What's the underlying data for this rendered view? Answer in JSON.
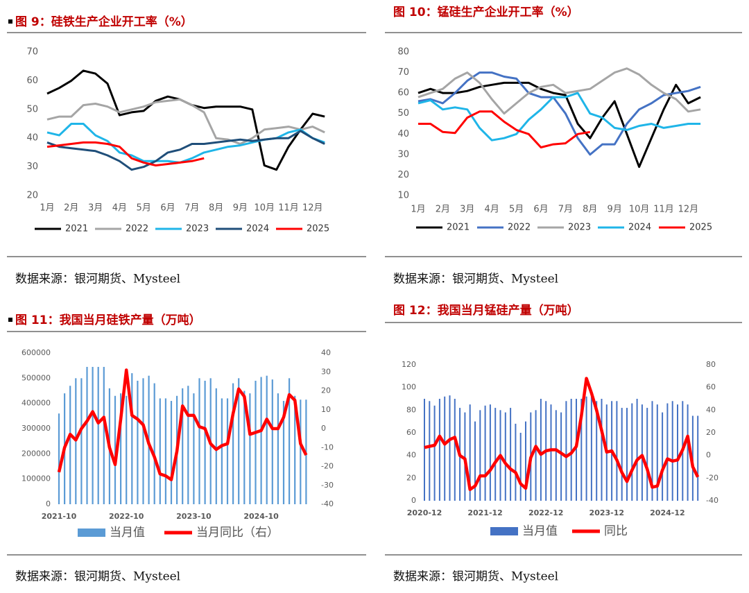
{
  "chart_data": [
    {
      "type": "line",
      "title": "图 9：硅铁生产企业开工率（%）",
      "source": "数据来源：银河期货、Mysteel",
      "categories": [
        "1月",
        null,
        "2月",
        null,
        "3月",
        null,
        "4月",
        null,
        "5月",
        null,
        "6月",
        null,
        "7月",
        null,
        "8月",
        null,
        "9月",
        null,
        "10月",
        null,
        "11月",
        null,
        "12月",
        null
      ],
      "ylim": [
        20,
        70
      ],
      "yticks": [
        20,
        30,
        40,
        50,
        60,
        70
      ],
      "series": [
        {
          "name": "2021",
          "color": "#000000",
          "values": [
            55.5,
            57.5,
            60,
            63.5,
            62.5,
            59,
            48,
            49,
            49.5,
            53,
            54.5,
            53.5,
            51.5,
            50.5,
            51,
            51,
            51,
            50,
            30.5,
            29,
            37,
            43,
            48.5,
            47.5
          ]
        },
        {
          "name": "2022",
          "color": "#a5a5a5",
          "values": [
            46.5,
            47.5,
            47.5,
            51.5,
            52,
            51,
            49,
            50,
            51,
            52.5,
            53,
            53.5,
            51.5,
            49,
            40,
            39.5,
            38,
            40,
            43,
            43.5,
            44,
            43,
            44,
            42
          ]
        },
        {
          "name": "2023",
          "color": "#1fb5e8",
          "values": [
            42,
            41,
            45,
            45,
            41,
            39,
            35,
            34,
            32,
            32,
            32,
            31.5,
            33,
            35,
            36,
            37,
            37.5,
            38.5,
            39.5,
            40,
            42,
            43,
            40,
            38.5
          ]
        },
        {
          "name": "2024",
          "color": "#1f4e79",
          "values": [
            38.5,
            37,
            36.5,
            36,
            35.5,
            34,
            32,
            29,
            30,
            32,
            35,
            36,
            38,
            38,
            38.5,
            39,
            39.5,
            39,
            39.5,
            40,
            40,
            42.5,
            40,
            38
          ]
        },
        {
          "name": "2025",
          "color": "#ff0000",
          "values": [
            37,
            37.5,
            38,
            38.5,
            38.5,
            38,
            37,
            33,
            31.5,
            30.5,
            31,
            31.5,
            32,
            33,
            null,
            null,
            null,
            null,
            null,
            null,
            null,
            null,
            null,
            null
          ]
        }
      ]
    },
    {
      "type": "line",
      "title": "图 10：锰硅生产企业开工率（%）",
      "source": "数据来源：银河期货、Mysteel",
      "categories": [
        "1月",
        null,
        "2月",
        null,
        "3月",
        null,
        "4月",
        null,
        "5月",
        null,
        "6月",
        null,
        "7月",
        null,
        "8月",
        null,
        "9月",
        null,
        "10月",
        null,
        "11月",
        null,
        "12月",
        null
      ],
      "ylim": [
        10,
        80
      ],
      "yticks": [
        10,
        20,
        30,
        40,
        50,
        60,
        70,
        80
      ],
      "series": [
        {
          "name": "2021",
          "color": "#000000",
          "values": [
            60,
            62,
            60,
            60,
            61,
            63,
            64,
            65,
            65,
            65,
            62,
            60,
            59,
            45,
            38,
            48,
            56,
            40,
            24,
            38,
            52,
            64,
            55,
            58
          ]
        },
        {
          "name": "2022",
          "color": "#4472c4",
          "values": [
            56,
            57,
            55,
            60,
            66,
            70,
            70,
            68,
            67,
            60,
            58,
            58,
            50,
            38,
            30,
            35,
            35,
            45,
            52,
            55,
            59,
            60,
            61,
            63
          ]
        },
        {
          "name": "2023",
          "color": "#a5a5a5",
          "values": [
            58,
            60,
            62,
            67,
            70,
            65,
            57,
            50,
            55,
            60,
            63,
            64,
            60,
            61,
            62,
            66,
            70,
            72,
            69,
            64,
            60,
            57,
            51,
            52
          ]
        },
        {
          "name": "2024",
          "color": "#1fb5e8",
          "values": [
            55,
            56.5,
            52,
            53,
            52,
            43,
            37,
            38,
            40,
            47,
            52,
            58,
            58,
            60,
            50,
            48,
            43,
            42,
            44,
            45,
            43,
            44,
            45,
            45
          ]
        },
        {
          "name": "2025",
          "color": "#ff0000",
          "values": [
            45,
            45,
            41,
            40.5,
            48,
            51,
            51,
            46,
            42,
            40,
            33.5,
            35,
            35.5,
            40,
            41,
            null,
            null,
            null,
            null,
            null,
            null,
            null,
            null,
            null
          ]
        }
      ]
    },
    {
      "type": "combo",
      "title": "图 11：我国当月硅铁产量（万吨）",
      "source": "数据来源：银河期货、Mysteel",
      "categories": [
        "2021-10",
        null,
        null,
        null,
        null,
        null,
        null,
        null,
        null,
        null,
        null,
        null,
        "2022-10",
        null,
        null,
        null,
        null,
        null,
        null,
        null,
        null,
        null,
        null,
        null,
        "2023-10",
        null,
        null,
        null,
        null,
        null,
        null,
        null,
        null,
        null,
        null,
        null,
        "2024-10",
        null,
        null,
        null,
        null,
        null,
        null,
        null,
        null
      ],
      "ylim": [
        0,
        600000
      ],
      "yticks": [
        0,
        100000,
        200000,
        300000,
        400000,
        500000,
        600000
      ],
      "y2lim": [
        -40,
        40
      ],
      "y2ticks": [
        -40,
        -30,
        -20,
        -10,
        0,
        10,
        20,
        30,
        40
      ],
      "series": [
        {
          "name": "当月值",
          "color": "#5b9bd5",
          "values": [
            360000,
            440000,
            470000,
            500000,
            500000,
            545000,
            545000,
            545000,
            545000,
            460000,
            430000,
            440000,
            430000,
            520000,
            490000,
            500000,
            510000,
            480000,
            420000,
            420000,
            410000,
            430000,
            460000,
            470000,
            440000,
            500000,
            490000,
            500000,
            460000,
            420000,
            420000,
            480000,
            500000,
            450000,
            440000,
            490000,
            505000,
            510000,
            495000,
            440000,
            410000,
            500000,
            430000,
            415000,
            415000
          ]
        },
        {
          "name": "当月同比（右）",
          "color": "#ff0000",
          "axis": "y2",
          "values": [
            -23,
            -10,
            -3,
            -6,
            0,
            4,
            9,
            3,
            6,
            -10,
            -19,
            5,
            31,
            7,
            5,
            2,
            -8,
            -15,
            -24,
            -25,
            -27,
            -12,
            12,
            7,
            7,
            1,
            0,
            -8,
            -11,
            -9,
            -8,
            8,
            21,
            17,
            -3,
            -2,
            -1,
            5,
            0,
            0,
            6,
            18,
            15,
            -8,
            -14
          ]
        }
      ]
    },
    {
      "type": "combo",
      "title": "图 12：我国当月锰硅产量（万吨）",
      "source": "数据来源：银河期货、Mysteel",
      "categories": [
        "2020-12",
        null,
        null,
        null,
        null,
        null,
        null,
        null,
        null,
        null,
        null,
        null,
        "2021-12",
        null,
        null,
        null,
        null,
        null,
        null,
        null,
        null,
        null,
        null,
        null,
        "2022-12",
        null,
        null,
        null,
        null,
        null,
        null,
        null,
        null,
        null,
        null,
        null,
        "2023-12",
        null,
        null,
        null,
        null,
        null,
        null,
        null,
        null,
        null,
        null,
        null,
        "2024-12",
        null,
        null,
        null,
        null,
        null,
        null
      ],
      "ylim": [
        0,
        120
      ],
      "yticks": [
        0,
        20,
        40,
        60,
        80,
        100,
        120
      ],
      "y2lim": [
        -40,
        80
      ],
      "y2ticks": [
        -40,
        -20,
        0,
        20,
        40,
        60,
        80
      ],
      "series": [
        {
          "name": "当月值",
          "color": "#4472c4",
          "values": [
            90,
            88,
            84,
            90,
            92,
            93,
            90,
            82,
            78,
            85,
            70,
            80,
            84,
            85,
            82,
            80,
            78,
            82,
            68,
            60,
            70,
            78,
            80,
            90,
            88,
            85,
            80,
            78,
            88,
            90,
            90,
            90,
            92,
            95,
            88,
            90,
            85,
            88,
            88,
            82,
            82,
            86,
            90,
            85,
            82,
            88,
            85,
            78,
            86,
            88,
            85,
            88,
            85,
            75,
            75
          ]
        },
        {
          "name": "同比",
          "color": "#ff0000",
          "axis": "y2",
          "values": [
            7,
            8,
            9,
            17,
            10,
            14,
            16,
            0,
            -3,
            -30,
            -27,
            -18,
            -18,
            -13,
            -6,
            0,
            -7,
            -12,
            -15,
            -25,
            -29,
            -2,
            8,
            1,
            4,
            5,
            5,
            2,
            -1,
            2,
            8,
            35,
            68,
            55,
            40,
            22,
            3,
            4,
            -4,
            -15,
            -23,
            -13,
            -4,
            0,
            -12,
            -28,
            -27,
            -13,
            -3,
            -5,
            -4,
            5,
            17,
            -10,
            -19
          ]
        }
      ]
    }
  ]
}
